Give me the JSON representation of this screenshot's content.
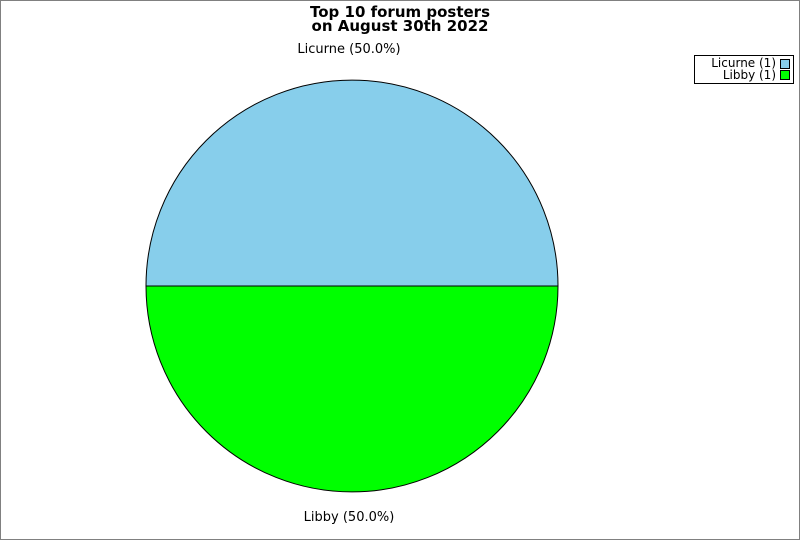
{
  "chart_data": {
    "type": "pie",
    "title_lines": [
      "Top 10 forum posters",
      "on August 30th 2022"
    ],
    "slices": [
      {
        "label": "Licurne",
        "value": 1,
        "pct": 50.0,
        "color": "#87CEEB",
        "callout": "Licurne (50.0%)",
        "legend_label": "Licurne (1)"
      },
      {
        "label": "Libby",
        "value": 1,
        "pct": 50.0,
        "color": "#00FF00",
        "callout": "Libby (50.0%)",
        "legend_label": "Libby (1)"
      }
    ],
    "start_angle_deg": 180,
    "outline_color": "#000000",
    "background_color": "#FFFFFF",
    "frame_border_color": "#808080",
    "legend_position": "top-right"
  }
}
